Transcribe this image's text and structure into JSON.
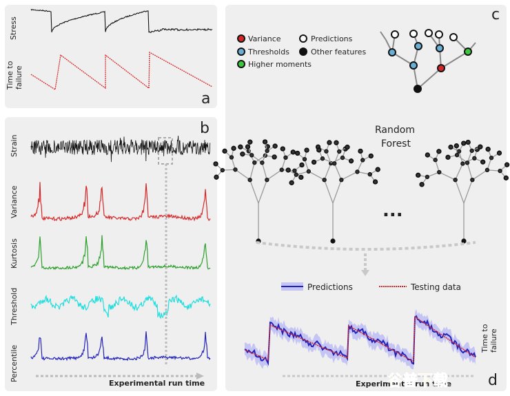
{
  "panel_a": {
    "letter": "a",
    "stress_label": "Stress",
    "ttf_label_1": "Time to",
    "ttf_label_2": "failure"
  },
  "panel_b": {
    "letter": "b",
    "rows": [
      {
        "label": "Strain",
        "color": "#111111"
      },
      {
        "label": "Variance",
        "color": "#d62728"
      },
      {
        "label": "Kurtosis",
        "color": "#2ca02c"
      },
      {
        "label": "Threshold",
        "color": "#22dddd"
      },
      {
        "label": "Percentile",
        "color": "#2222bb"
      }
    ],
    "xaxis": "Experimental run time"
  },
  "panel_c": {
    "letter": "c",
    "legend": {
      "variance": "Variance",
      "predictions": "Predictions",
      "thresholds": "Thresholds",
      "other": "Other features",
      "higher": "Higher moments"
    },
    "rf_1": "Random",
    "rf_2": "Forest",
    "ellipsis": "...",
    "colors": {
      "variance": "#d62728",
      "thresholds": "#6ab0d6",
      "higher": "#3cc83c",
      "other": "#111111"
    }
  },
  "panel_d": {
    "letter": "d",
    "legend_predictions": "Predictions",
    "legend_testing": "Testing data",
    "ttf_1": "Time to",
    "ttf_2": "failure",
    "xaxis": "Experimental run time",
    "colors": {
      "prediction": "#2222bb",
      "testing": "#d62728"
    }
  },
  "watermark": "谷普下载"
}
